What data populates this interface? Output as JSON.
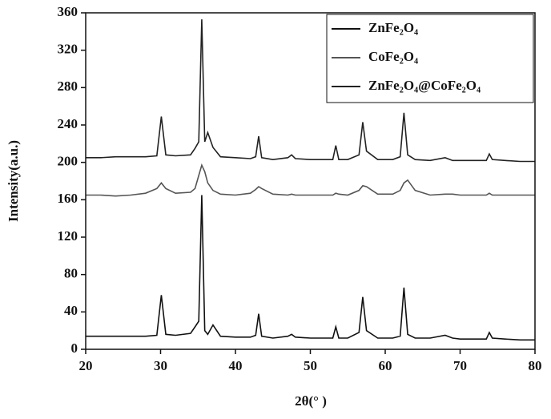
{
  "chart_data": {
    "type": "line",
    "xlabel": "2θ(° )",
    "ylabel": "Intensity(a.u.)",
    "x": [
      20,
      22,
      24,
      26,
      28,
      29.5,
      30.1,
      30.7,
      32,
      34,
      34.6,
      35.1,
      35.5,
      35.9,
      36.3,
      37,
      38,
      40,
      42,
      42.7,
      43.1,
      43.5,
      45,
      47,
      47.5,
      48,
      50,
      52,
      53,
      53.4,
      53.8,
      55,
      56.5,
      57,
      57.5,
      59,
      61,
      62,
      62.5,
      63,
      64,
      66,
      68,
      69,
      70,
      72,
      73.5,
      73.9,
      74.3,
      76,
      78,
      80
    ],
    "series": [
      {
        "name": "ZnFe₂O₄",
        "color": "#111111",
        "values": [
          14,
          14,
          14,
          14,
          14,
          15,
          58,
          16,
          15,
          17,
          24,
          30,
          165,
          20,
          16,
          26,
          14,
          13,
          13,
          15,
          38,
          14,
          12,
          14,
          16,
          13,
          12,
          12,
          12,
          24,
          12,
          12,
          18,
          56,
          20,
          12,
          12,
          14,
          66,
          16,
          12,
          12,
          15,
          12,
          11,
          11,
          11,
          18,
          12,
          11,
          10,
          10
        ]
      },
      {
        "name": "CoFe₂O₄",
        "color": "#555555",
        "values": [
          165,
          165,
          164,
          165,
          167,
          172,
          178,
          172,
          167,
          168,
          172,
          186,
          197,
          190,
          178,
          170,
          166,
          165,
          167,
          171,
          174,
          172,
          166,
          165,
          166,
          165,
          165,
          165,
          165,
          167,
          166,
          165,
          170,
          175,
          174,
          166,
          166,
          170,
          178,
          181,
          170,
          165,
          166,
          166,
          165,
          165,
          165,
          167,
          165,
          165,
          165,
          165
        ]
      },
      {
        "name": "ZnFe₂O₄@CoFe₂O₄",
        "color": "#222222",
        "values": [
          205,
          205,
          206,
          206,
          206,
          207,
          249,
          208,
          207,
          208,
          215,
          222,
          353,
          222,
          232,
          216,
          206,
          205,
          204,
          206,
          228,
          205,
          203,
          205,
          208,
          204,
          203,
          203,
          203,
          218,
          203,
          203,
          208,
          243,
          212,
          203,
          203,
          206,
          253,
          208,
          203,
          202,
          205,
          202,
          202,
          202,
          202,
          209,
          203,
          202,
          201,
          201
        ]
      }
    ],
    "xlim": [
      20,
      80
    ],
    "xticks": [
      20,
      30,
      40,
      50,
      60,
      70,
      80
    ],
    "ylim": [
      0,
      360
    ],
    "yticks": [
      0,
      40,
      80,
      120,
      160,
      200,
      240,
      280,
      320,
      360
    ],
    "legend": "upper right"
  }
}
